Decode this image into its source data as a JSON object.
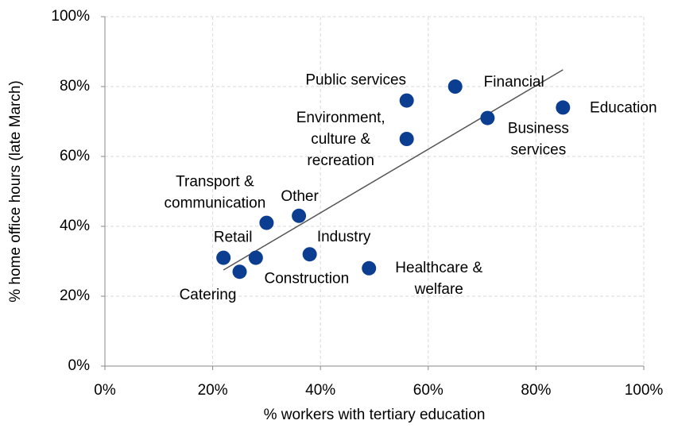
{
  "chart_data": {
    "type": "scatter",
    "x_label": "% workers with tertiary education",
    "y_label": "% home office hours (late March)",
    "x": [
      22,
      25,
      28,
      30,
      36,
      38,
      49,
      56,
      56,
      65,
      71,
      85
    ],
    "values": [
      31,
      27,
      31,
      41,
      43,
      32,
      28,
      76,
      65,
      80,
      71,
      74
    ],
    "point_labels": [
      [
        "Retail"
      ],
      [
        "Catering"
      ],
      [
        "Construction"
      ],
      [
        "Transport &",
        "communication"
      ],
      [
        "Other"
      ],
      [
        "Industry"
      ],
      [
        "Healthcare &",
        "welfare"
      ],
      [
        "Public services"
      ],
      [
        "Environment,",
        "culture &",
        "recreation"
      ],
      [
        "Financial"
      ],
      [
        "Business",
        "services"
      ],
      [
        "Education"
      ]
    ],
    "color": "#0b3d91",
    "trendline": {
      "x": [
        22,
        85
      ],
      "values": [
        27.5,
        84.8
      ],
      "color": "#555555"
    },
    "xlim": [
      0,
      100
    ],
    "ylim": [
      0,
      100
    ],
    "xticks": [
      {
        "value": 0,
        "label": "0%"
      },
      {
        "value": 20,
        "label": "20%"
      },
      {
        "value": 40,
        "label": "40%"
      },
      {
        "value": 60,
        "label": "60%"
      },
      {
        "value": 80,
        "label": "80%"
      },
      {
        "value": 100,
        "label": "100%"
      }
    ],
    "yticks": [
      {
        "value": 0,
        "label": "0%"
      },
      {
        "value": 20,
        "label": "20%"
      },
      {
        "value": 40,
        "label": "40%"
      },
      {
        "value": 60,
        "label": "60%"
      },
      {
        "value": 80,
        "label": "80%"
      },
      {
        "value": 100,
        "label": "100%"
      }
    ],
    "grid": true
  }
}
